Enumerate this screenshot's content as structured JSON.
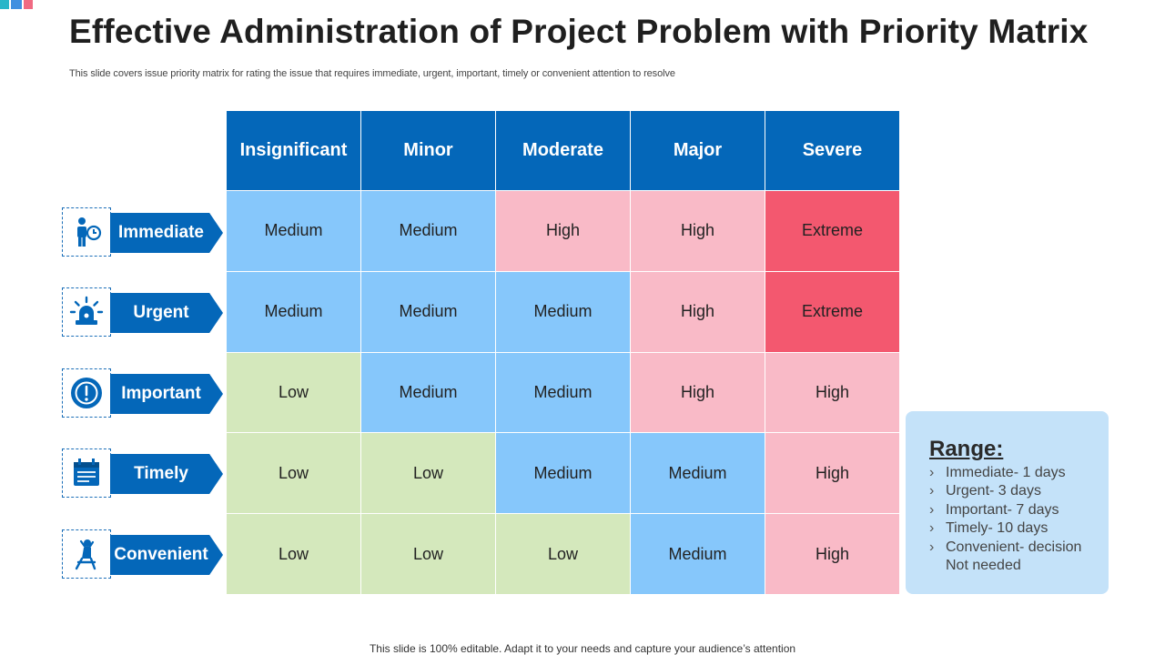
{
  "title": "Effective Administration of Project Problem with Priority Matrix",
  "subtitle": "This slide covers issue priority matrix for rating the issue that requires immediate, urgent, important, timely or convenient attention to resolve",
  "footer": "This slide is 100% editable. Adapt it to your needs and capture your audience’s attention",
  "colors": {
    "header_blue": "#0467b9",
    "medium": "#86c7fb",
    "high": "#f9bac7",
    "extreme": "#f3586f",
    "low": "#d4e8bc",
    "range_bg": "#c4e2f9"
  },
  "matrix": {
    "columns": [
      "Insignificant",
      "Minor",
      "Moderate",
      "Major",
      "Severe"
    ],
    "rows": [
      {
        "label": "Immediate",
        "icon": "person-clock-icon",
        "cells": [
          "Medium",
          "Medium",
          "High",
          "High",
          "Extreme"
        ]
      },
      {
        "label": "Urgent",
        "icon": "siren-icon",
        "cells": [
          "Medium",
          "Medium",
          "Medium",
          "High",
          "Extreme"
        ]
      },
      {
        "label": "Important",
        "icon": "alert-circle-icon",
        "cells": [
          "Low",
          "Medium",
          "Medium",
          "High",
          "High"
        ]
      },
      {
        "label": "Timely",
        "icon": "calendar-icon",
        "cells": [
          "Low",
          "Low",
          "Medium",
          "Medium",
          "High"
        ]
      },
      {
        "label": "Convenient",
        "icon": "relaxed-person-icon",
        "cells": [
          "Low",
          "Low",
          "Low",
          "Medium",
          "High"
        ]
      }
    ]
  },
  "range": {
    "title": "Range:",
    "items": [
      "Immediate- 1 days",
      "Urgent- 3 days",
      "Important- 7 days",
      "Timely- 10 days",
      "Convenient- decision Not needed"
    ]
  }
}
